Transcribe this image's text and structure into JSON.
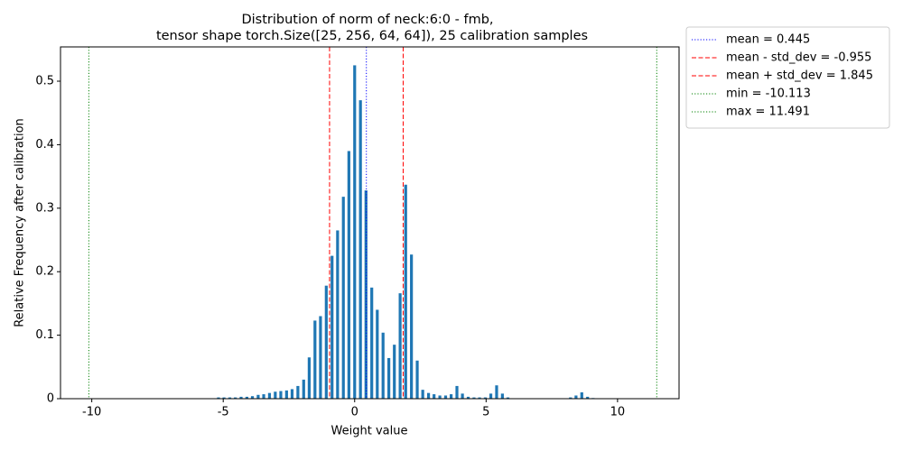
{
  "chart_data": {
    "type": "bar",
    "title": "Distribution of norm of neck:6:0 - fmb,",
    "subtitle": "tensor shape torch.Size([25, 256, 64, 64]), 25 calibration samples",
    "x_label": "Weight value",
    "y_label": "Relative Frequency after calibration",
    "color": "#1f77b4",
    "x": [
      -5.18,
      -4.97,
      -4.75,
      -4.54,
      -4.32,
      -4.1,
      -3.89,
      -3.67,
      -3.46,
      -3.24,
      -3.02,
      -2.81,
      -2.59,
      -2.38,
      -2.16,
      -1.94,
      -1.73,
      -1.51,
      -1.3,
      -1.08,
      -0.86,
      -0.65,
      -0.43,
      -0.22,
      0,
      0.22,
      0.43,
      0.65,
      0.86,
      1.08,
      1.3,
      1.51,
      1.73,
      1.94,
      2.16,
      2.38,
      2.59,
      2.81,
      3.02,
      3.24,
      3.46,
      3.67,
      3.89,
      4.1,
      4.32,
      4.54,
      4.75,
      4.97,
      5.18,
      5.4,
      5.62,
      5.83,
      8.21,
      8.42,
      8.64,
      8.86,
      9.07
    ],
    "values": [
      0.002,
      0.002,
      0.002,
      0.002,
      0.003,
      0.003,
      0.004,
      0.006,
      0.007,
      0.009,
      0.011,
      0.012,
      0.013,
      0.015,
      0.02,
      0.03,
      0.065,
      0.123,
      0.13,
      0.178,
      0.225,
      0.265,
      0.318,
      0.39,
      0.525,
      0.47,
      0.328,
      0.175,
      0.14,
      0.104,
      0.064,
      0.085,
      0.166,
      0.337,
      0.227,
      0.06,
      0.014,
      0.009,
      0.007,
      0.005,
      0.005,
      0.007,
      0.02,
      0.008,
      0.003,
      0.002,
      0.002,
      0.002,
      0.008,
      0.021,
      0.008,
      0.002,
      0.002,
      0.005,
      0.01,
      0.003,
      0.001
    ],
    "lines": [
      {
        "name": "mean = 0.445",
        "value": 0.445,
        "color": "#0000ff",
        "style": "dotted"
      },
      {
        "name": "mean - std_dev = -0.955",
        "value": -0.955,
        "color": "#ff0000",
        "style": "dashed"
      },
      {
        "name": "mean + std_dev = 1.845",
        "value": 1.845,
        "color": "#ff0000",
        "style": "dashed"
      },
      {
        "name": "min = -10.113",
        "value": -10.113,
        "color": "#008000",
        "style": "dotted"
      },
      {
        "name": "max = 11.491",
        "value": 11.491,
        "color": "#008000",
        "style": "dotted"
      }
    ],
    "xlim": [
      -11.19,
      12.34
    ],
    "ylim": [
      0,
      0.554
    ],
    "xticks": [
      -10,
      -5,
      0,
      5,
      10
    ],
    "yticks": [
      0.0,
      0.1,
      0.2,
      0.3,
      0.4,
      0.5
    ],
    "legend": "outside-right"
  }
}
